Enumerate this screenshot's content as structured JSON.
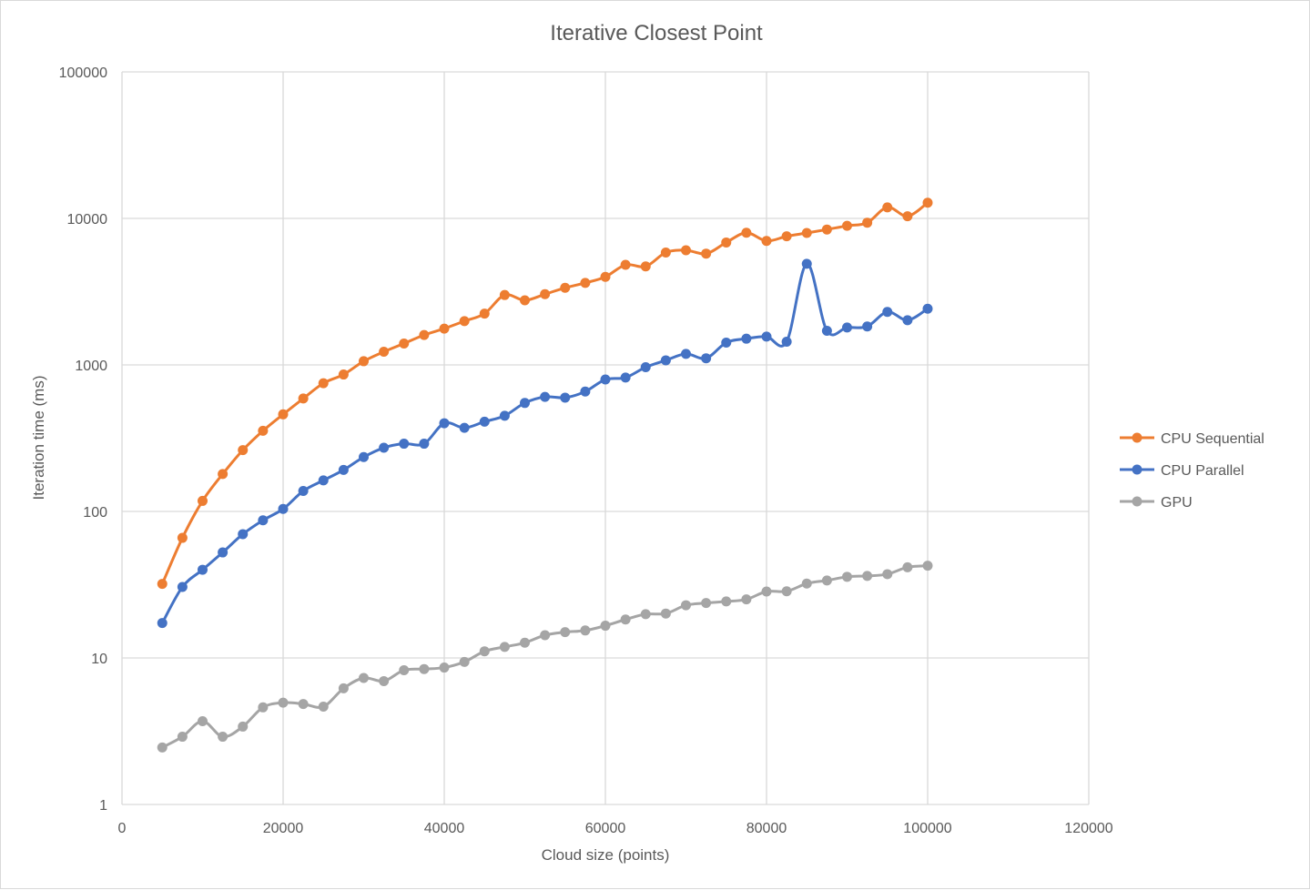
{
  "chart_data": {
    "type": "line",
    "title": "Iterative Closest Point",
    "xlabel": "Cloud size (points)",
    "ylabel": "Iteration time (ms)",
    "xlim": [
      0,
      120000
    ],
    "ylim": [
      1,
      100000
    ],
    "yscale": "log",
    "grid": true,
    "legend_position": "right",
    "x_ticks": [
      "0",
      "20000",
      "40000",
      "60000",
      "80000",
      "100000",
      "120000"
    ],
    "y_ticks": [
      "1",
      "10",
      "100",
      "1000",
      "10000",
      "100000"
    ],
    "x": [
      5000,
      7500,
      10000,
      12500,
      15000,
      17500,
      20000,
      22500,
      25000,
      27500,
      30000,
      32500,
      35000,
      37500,
      40000,
      42500,
      45000,
      47500,
      50000,
      52500,
      55000,
      57500,
      60000,
      62500,
      65000,
      67500,
      70000,
      72500,
      75000,
      77500,
      80000,
      82500,
      85000,
      87500,
      90000,
      92500,
      95000,
      97500,
      100000
    ],
    "series": [
      {
        "name": "CPU Sequential",
        "color": "#ed7d31",
        "values": [
          32,
          66,
          118,
          180,
          262,
          355,
          460,
          590,
          750,
          860,
          1060,
          1230,
          1400,
          1600,
          1770,
          1990,
          2240,
          3000,
          2760,
          3040,
          3360,
          3630,
          3990,
          4820,
          4700,
          5850,
          6060,
          5750,
          6850,
          7980,
          7020,
          7550,
          7950,
          8400,
          8900,
          9350,
          11900,
          10350,
          12800
        ]
      },
      {
        "name": "CPU Parallel",
        "color": "#4472c4",
        "values": [
          17.3,
          30.5,
          40,
          52.5,
          70,
          87,
          104,
          138,
          163,
          192,
          235,
          272,
          290,
          290,
          400,
          372,
          410,
          450,
          550,
          605,
          598,
          658,
          795,
          820,
          965,
          1075,
          1190,
          1110,
          1420,
          1510,
          1560,
          1440,
          4900,
          1710,
          1800,
          1830,
          2300,
          2020,
          2420
        ]
      },
      {
        "name": "GPU",
        "color": "#a5a5a5",
        "values": [
          2.45,
          2.9,
          3.7,
          2.9,
          3.4,
          4.6,
          4.95,
          4.85,
          4.65,
          6.2,
          7.3,
          6.95,
          8.25,
          8.4,
          8.6,
          9.4,
          11.1,
          11.9,
          12.7,
          14.3,
          15.0,
          15.4,
          16.6,
          18.3,
          19.9,
          20.1,
          22.9,
          23.7,
          24.3,
          25.1,
          28.4,
          28.5,
          32.2,
          33.8,
          35.8,
          36.3,
          37.3,
          41.6,
          42.6
        ]
      }
    ]
  }
}
